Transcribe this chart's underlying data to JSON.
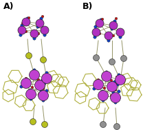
{
  "background_color": "#ffffff",
  "panel_A_label": "A)",
  "panel_B_label": "B)",
  "label_fontsize": 9,
  "label_fontweight": "bold",
  "colors": {
    "Mn": "#c040d0",
    "Mn2": "#b030c0",
    "Au": "#b8c020",
    "Ag": "#909090",
    "N_blue": "#1040cc",
    "O_red": "#cc1010",
    "C_bond": "#999944",
    "ring_bond": "#aaaa33",
    "bond": "#888855"
  },
  "figsize": [
    2.4,
    1.89
  ],
  "dpi": 100
}
